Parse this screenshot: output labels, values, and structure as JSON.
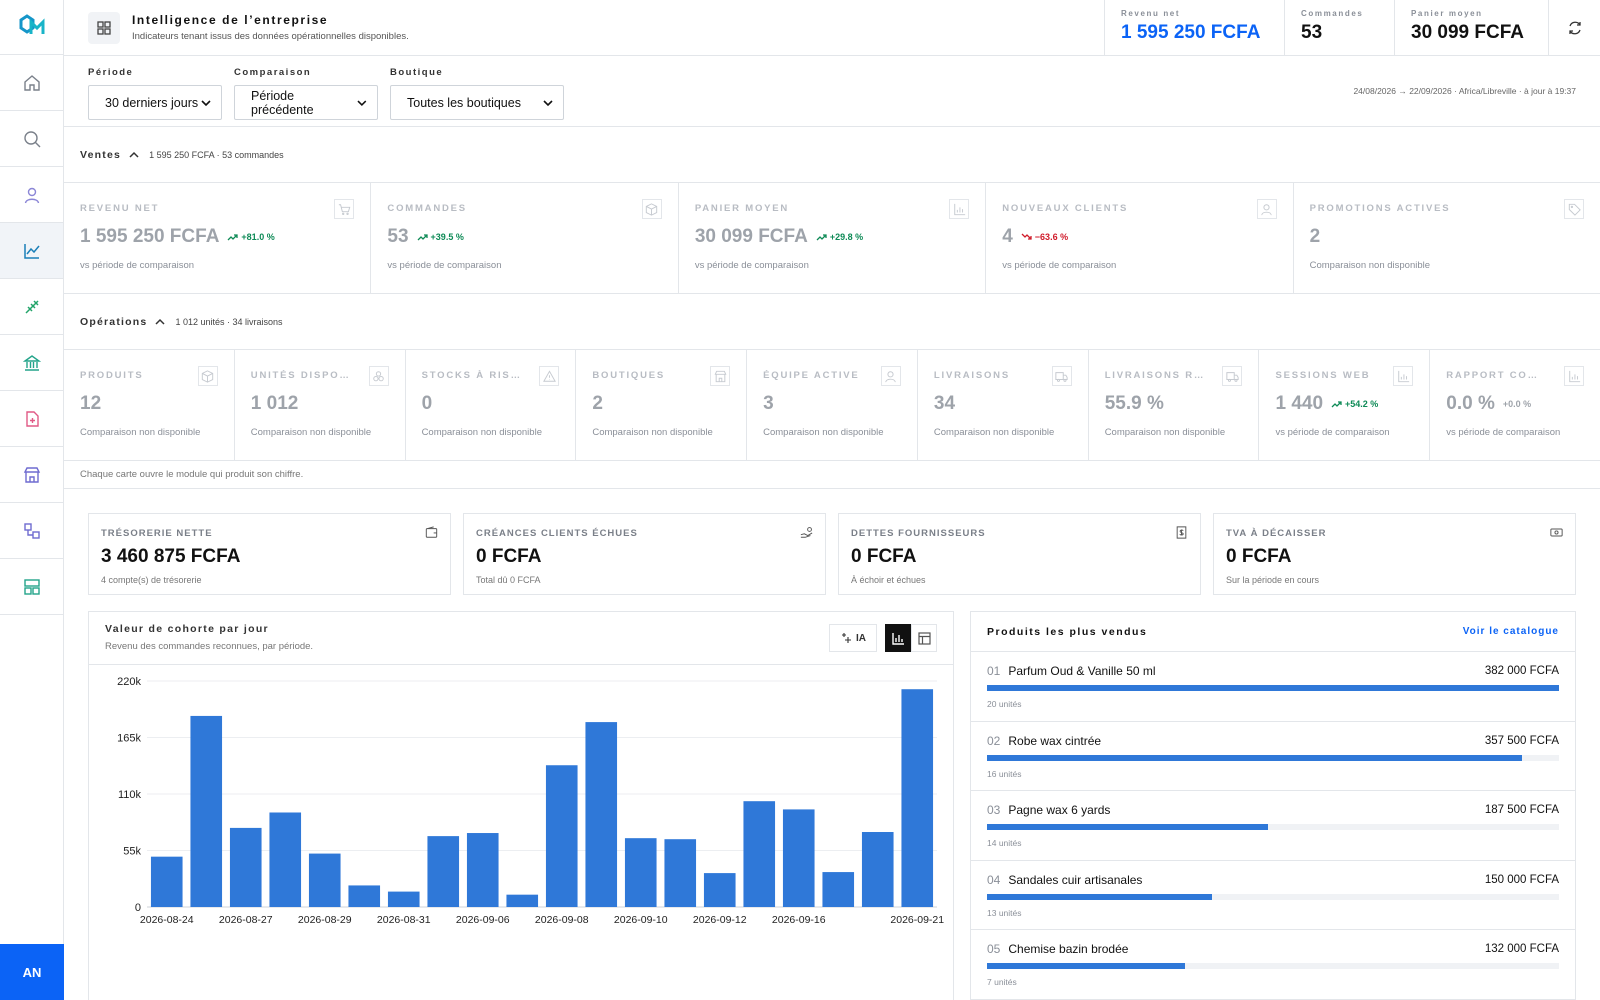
{
  "header": {
    "title": "Intelligence de l’entreprise",
    "subtitle": "Indicateurs tenant issus des données opérationnelles disponibles.",
    "kpis": [
      {
        "label": "Revenu net",
        "value": "1 595 250 FCFA"
      },
      {
        "label": "Commandes",
        "value": "53"
      },
      {
        "label": "Panier moyen",
        "value": "30 099 FCFA"
      }
    ]
  },
  "filters": {
    "period_label": "Période",
    "period_value": "30 derniers jours",
    "comparison_label": "Comparaison",
    "comparison_value": "Période précédente",
    "shop_label": "Boutique",
    "shop_value": "Toutes les boutiques",
    "meta": "24/08/2026 → 22/09/2026 · Africa/Libreville · à jour à 19:37"
  },
  "sales": {
    "title": "Ventes",
    "summary": "1 595 250 FCFA · 53 commandes",
    "metrics": [
      {
        "label": "REVENU NET",
        "value": "1 595 250 FCFA",
        "change": "+81.0 %",
        "trend": "up",
        "sub": "vs période de comparaison",
        "icon": "cart-icon"
      },
      {
        "label": "COMMANDES",
        "value": "53",
        "change": "+39.5 %",
        "trend": "up",
        "sub": "vs période de comparaison",
        "icon": "box-icon"
      },
      {
        "label": "PANIER MOYEN",
        "value": "30 099 FCFA",
        "change": "+29.8 %",
        "trend": "up",
        "sub": "vs période de comparaison",
        "icon": "chart-icon"
      },
      {
        "label": "NOUVEAUX CLIENTS",
        "value": "4",
        "change": "−63.6 %",
        "trend": "down",
        "sub": "vs période de comparaison",
        "icon": "user-icon"
      },
      {
        "label": "PROMOTIONS ACTIVES",
        "value": "2",
        "change": "",
        "trend": "none",
        "sub": "Comparaison non disponible",
        "icon": "tag-icon"
      }
    ]
  },
  "operations": {
    "title": "Opérations",
    "summary": "1 012 unités · 34 livraisons",
    "metrics": [
      {
        "label": "PRODUITS",
        "value": "12",
        "change": "",
        "trend": "none",
        "sub": "Comparaison non disponible",
        "icon": "box-icon"
      },
      {
        "label": "UNITÉS DISPON…",
        "value": "1 012",
        "change": "",
        "trend": "none",
        "sub": "Comparaison non disponible",
        "icon": "stack-icon"
      },
      {
        "label": "STOCKS À RISQ…",
        "value": "0",
        "change": "",
        "trend": "none",
        "sub": "Comparaison non disponible",
        "icon": "warning-icon"
      },
      {
        "label": "BOUTIQUES",
        "value": "2",
        "change": "",
        "trend": "none",
        "sub": "Comparaison non disponible",
        "icon": "store-icon"
      },
      {
        "label": "ÉQUIPE ACTIVE",
        "value": "3",
        "change": "",
        "trend": "none",
        "sub": "Comparaison non disponible",
        "icon": "user-icon"
      },
      {
        "label": "LIVRAISONS",
        "value": "34",
        "change": "",
        "trend": "none",
        "sub": "Comparaison non disponible",
        "icon": "truck-icon"
      },
      {
        "label": "LIVRAISONS RÉ…",
        "value": "55.9 %",
        "change": "",
        "trend": "none",
        "sub": "Comparaison non disponible",
        "icon": "truck-icon"
      },
      {
        "label": "SESSIONS WEB",
        "value": "1 440",
        "change": "+54.2 %",
        "trend": "up",
        "sub": "vs période de comparaison",
        "icon": "chart-icon"
      },
      {
        "label": "RAPPORT COM…",
        "value": "0.0 %",
        "change": "+0.0 %",
        "trend": "neutral",
        "sub": "vs période de comparaison",
        "icon": "chart-icon"
      }
    ],
    "note": "Chaque carte ouvre le module qui produit son chiffre."
  },
  "finance": [
    {
      "label": "TRÉSORERIE NETTE",
      "value": "3 460 875 FCFA",
      "sub": "4 compte(s) de trésorerie",
      "icon": "wallet-icon"
    },
    {
      "label": "CRÉANCES CLIENTS ÉCHUES",
      "value": "0 FCFA",
      "sub": "Total dû 0 FCFA",
      "icon": "hand-coins-icon"
    },
    {
      "label": "DETTES FOURNISSEURS",
      "value": "0 FCFA",
      "sub": "À échoir et échues",
      "icon": "receipt-icon"
    },
    {
      "label": "TVA À DÉCAISSER",
      "value": "0 FCFA",
      "sub": "Sur la période en cours",
      "icon": "banknote-icon"
    }
  ],
  "cohort": {
    "title": "Valeur de cohorte par jour",
    "subtitle": "Revenu des commandes reconnues, par période.",
    "ia_label": "IA"
  },
  "chart_data": {
    "type": "bar",
    "categories": [
      "2026-08-24",
      "",
      "2026-08-27",
      "",
      "2026-08-29",
      "",
      "2026-08-31",
      "",
      "2026-09-06",
      "",
      "2026-09-08",
      "",
      "2026-09-10",
      "",
      "2026-09-12",
      "",
      "2026-09-16",
      "",
      "",
      "2026-09-21"
    ],
    "values": [
      49000,
      186000,
      77000,
      92000,
      52000,
      21000,
      15000,
      69000,
      72000,
      12000,
      138000,
      180000,
      67000,
      66000,
      33000,
      103000,
      95000,
      34000,
      73000,
      212000
    ],
    "yticks": [
      "0",
      "55k",
      "110k",
      "165k",
      "220k"
    ],
    "ylim": [
      0,
      220000
    ],
    "color": "#2f78d8",
    "grid": true
  },
  "top_products": {
    "title": "Produits les plus vendus",
    "link": "Voir le catalogue",
    "items": [
      {
        "rank": "01",
        "name": "Parfum Oud & Vanille 50 ml",
        "value": "382 000 FCFA",
        "units": "20 unités",
        "share": 1.0
      },
      {
        "rank": "02",
        "name": "Robe wax cintrée",
        "value": "357 500 FCFA",
        "units": "16 unités",
        "share": 0.936
      },
      {
        "rank": "03",
        "name": "Pagne wax 6 yards",
        "value": "187 500 FCFA",
        "units": "14 unités",
        "share": 0.491
      },
      {
        "rank": "04",
        "name": "Sandales cuir artisanales",
        "value": "150 000 FCFA",
        "units": "13 unités",
        "share": 0.393
      },
      {
        "rank": "05",
        "name": "Chemise bazin brodée",
        "value": "132 000 FCFA",
        "units": "7 unités",
        "share": 0.346
      }
    ]
  },
  "user": {
    "initials": "AN"
  }
}
